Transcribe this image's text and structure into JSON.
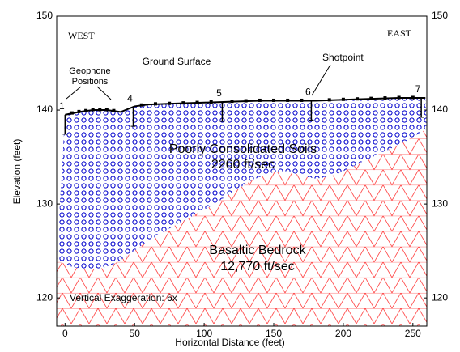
{
  "chart_data": {
    "type": "profile",
    "x_label": "Horizontal Distance (feet)",
    "y_label": "Elevation (feet)",
    "xlim": [
      -6,
      260
    ],
    "xticks": [
      0,
      50,
      100,
      150,
      200,
      250
    ],
    "ylim": [
      117,
      150
    ],
    "yticks": [
      120,
      130,
      140,
      150
    ],
    "y2lim": [
      117,
      150
    ],
    "y2ticks": [
      120,
      130,
      140,
      150
    ],
    "ground_surface": {
      "name": "Ground Surface",
      "x": [
        0,
        10,
        20,
        30,
        40,
        50,
        60,
        80,
        100,
        120,
        140,
        160,
        180,
        200,
        220,
        240,
        259
      ],
      "values": [
        139.5,
        139.8,
        140.0,
        140.0,
        139.8,
        140.4,
        140.6,
        140.7,
        140.8,
        140.9,
        141.0,
        141.0,
        141.0,
        141.1,
        141.2,
        141.3,
        141.3
      ]
    },
    "layer_boundary": {
      "x": [
        -6,
        5,
        15,
        25,
        35,
        45,
        55,
        65,
        75,
        90,
        105,
        120,
        135,
        150,
        160,
        170,
        180,
        190,
        200,
        215,
        230,
        245,
        260
      ],
      "values": [
        124.0,
        123.3,
        123.0,
        123.1,
        123.6,
        124.5,
        125.6,
        126.5,
        127.4,
        128.6,
        129.8,
        131.2,
        132.6,
        133.4,
        133.5,
        133.0,
        132.7,
        132.9,
        133.5,
        134.6,
        135.6,
        136.7,
        138.0
      ]
    },
    "geophones": [
      5,
      10,
      15,
      20,
      25,
      30,
      35,
      55,
      65,
      75,
      85,
      95,
      105,
      120,
      130,
      140,
      150,
      160,
      170,
      190,
      200,
      210,
      220,
      230,
      240,
      250
    ],
    "shotpoints": [
      {
        "label": "1",
        "x": 0
      },
      {
        "label": "4",
        "x": 49
      },
      {
        "label": "5",
        "x": 113
      },
      {
        "label": "6",
        "x": 177
      },
      {
        "label": "7",
        "x": 256
      }
    ],
    "layers": [
      {
        "name": "Poorly Consolidated Soils",
        "velocity": "2260 ft/sec",
        "color": "#0000cc"
      },
      {
        "name": "Basaltic Bedrock",
        "velocity": "12,770 ft/sec",
        "color": "#ff3333"
      }
    ],
    "labels": {
      "west": "WEST",
      "east": "EAST",
      "geophone_positions": "Geophone Positions",
      "shotpoint": "Shotpoint",
      "exaggeration": "Vertical Exaggeration: 6x"
    }
  }
}
